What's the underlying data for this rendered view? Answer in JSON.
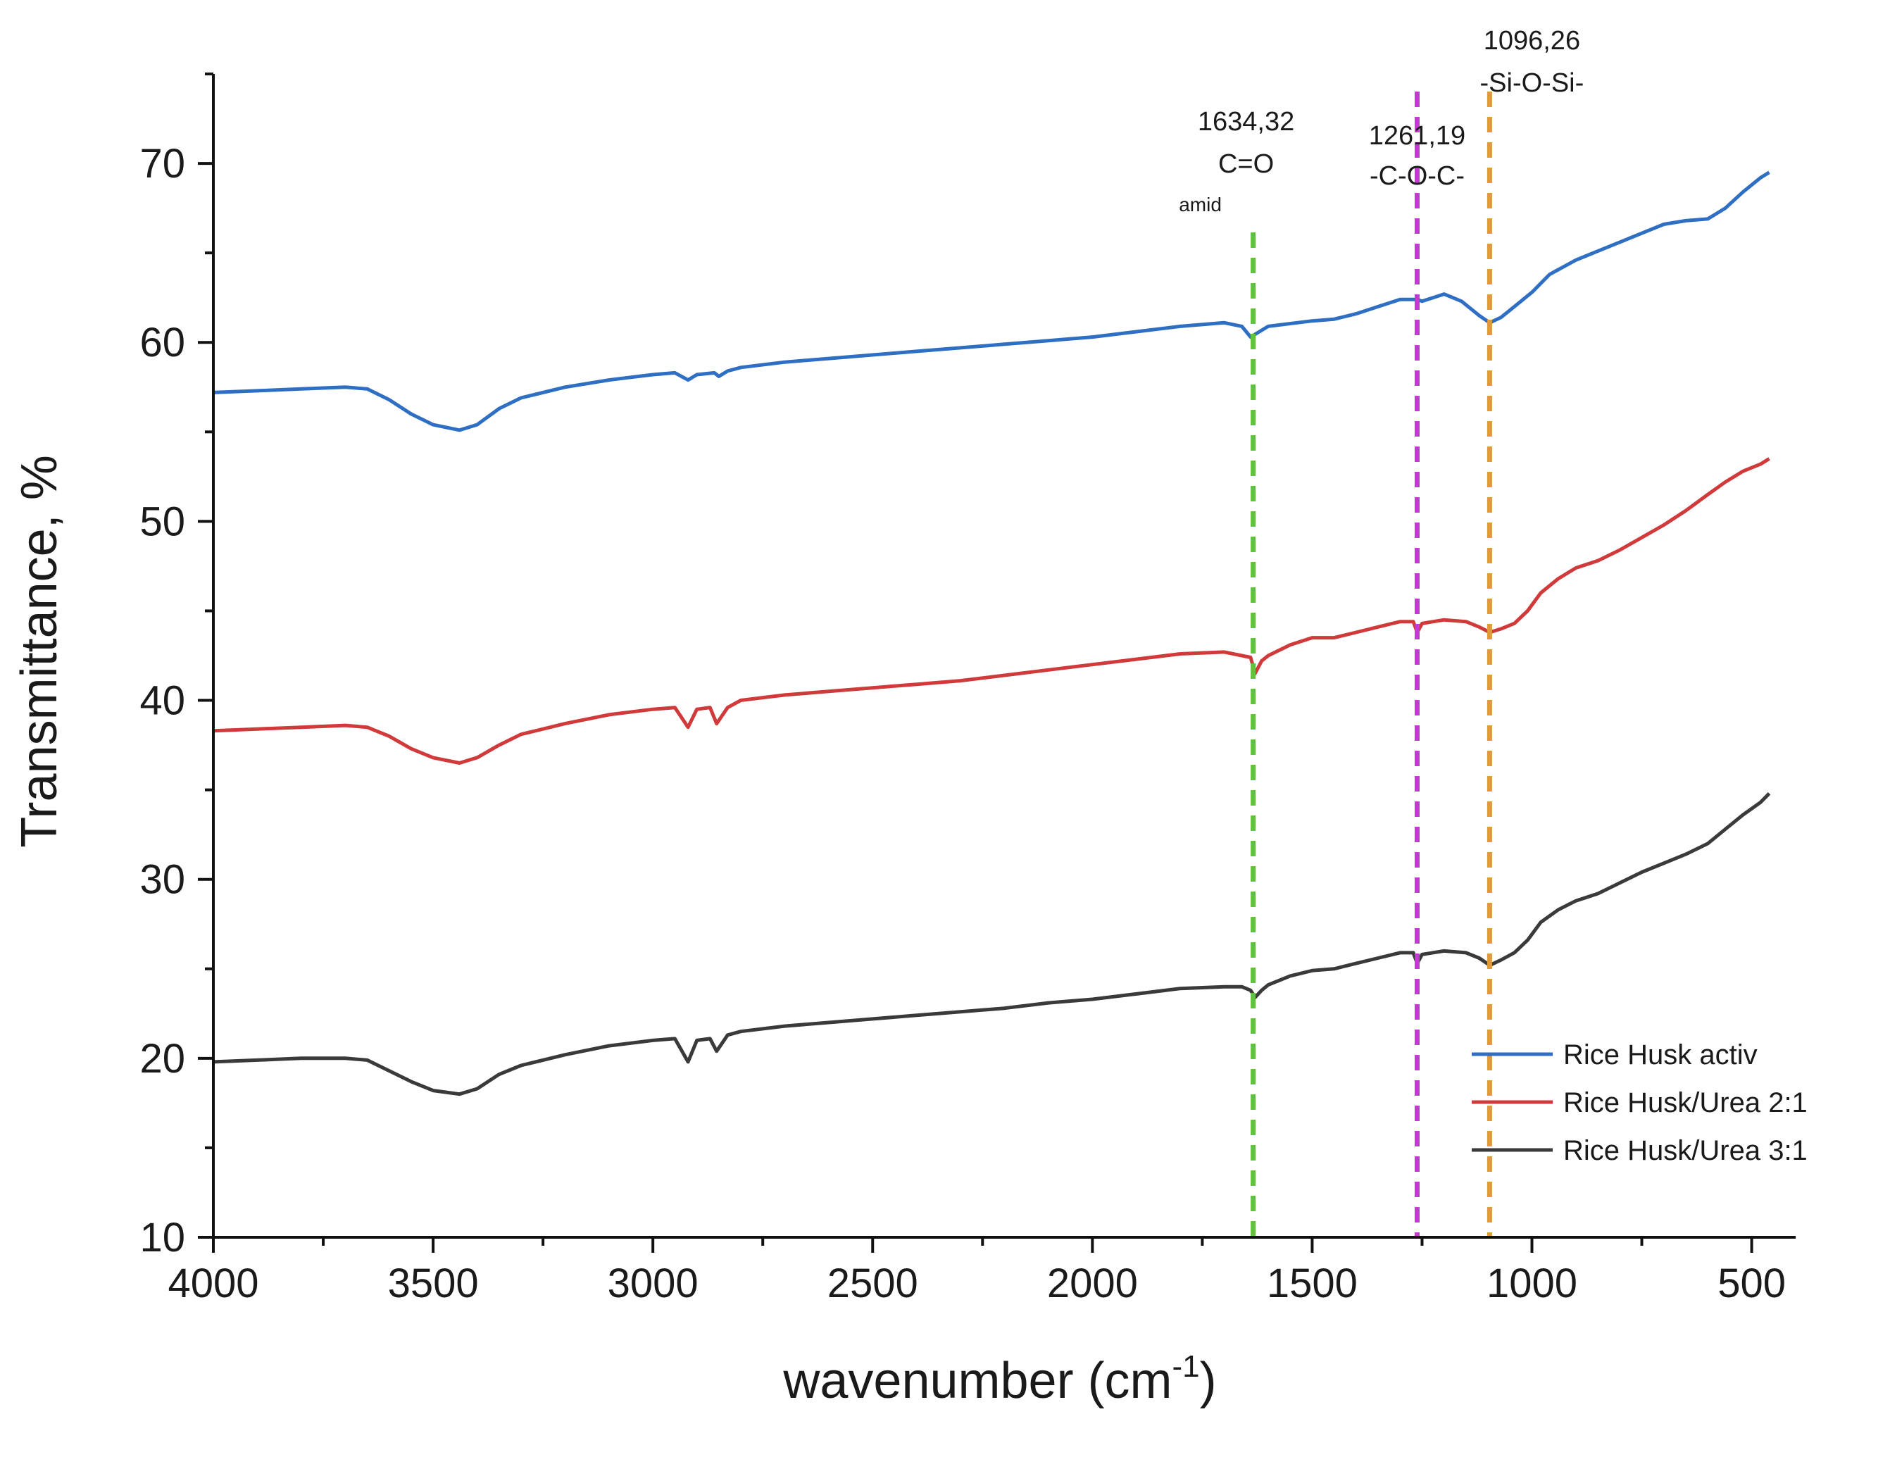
{
  "chart_data": {
    "type": "line",
    "xlabel": "wavenumber (cm",
    "xlabel_sup": "-1",
    "xlabel_close": ")",
    "ylabel": "Transmittance, %",
    "xlim": [
      4000,
      400
    ],
    "ylim": [
      10,
      75
    ],
    "x_axis_reversed": true,
    "grid": false,
    "legend_position": "bottom-right",
    "x_ticks": [
      4000,
      3500,
      3000,
      2500,
      2000,
      1500,
      1000,
      500
    ],
    "y_ticks": [
      10,
      20,
      30,
      40,
      50,
      60,
      70
    ],
    "series": [
      {
        "name": "Rice Husk activ",
        "color": "#2e6fc4",
        "points": [
          [
            4000,
            57.2
          ],
          [
            3900,
            57.3
          ],
          [
            3800,
            57.4
          ],
          [
            3700,
            57.5
          ],
          [
            3650,
            57.4
          ],
          [
            3600,
            56.8
          ],
          [
            3550,
            56
          ],
          [
            3500,
            55.4
          ],
          [
            3440,
            55.1
          ],
          [
            3400,
            55.4
          ],
          [
            3350,
            56.3
          ],
          [
            3300,
            56.9
          ],
          [
            3200,
            57.5
          ],
          [
            3100,
            57.9
          ],
          [
            3000,
            58.2
          ],
          [
            2950,
            58.3
          ],
          [
            2920,
            57.9
          ],
          [
            2900,
            58.2
          ],
          [
            2860,
            58.3
          ],
          [
            2850,
            58.1
          ],
          [
            2830,
            58.4
          ],
          [
            2800,
            58.6
          ],
          [
            2700,
            58.9
          ],
          [
            2600,
            59.1
          ],
          [
            2500,
            59.3
          ],
          [
            2400,
            59.5
          ],
          [
            2300,
            59.7
          ],
          [
            2200,
            59.9
          ],
          [
            2100,
            60.1
          ],
          [
            2000,
            60.3
          ],
          [
            1900,
            60.6
          ],
          [
            1800,
            60.9
          ],
          [
            1700,
            61.1
          ],
          [
            1660,
            60.9
          ],
          [
            1640,
            60.3
          ],
          [
            1620,
            60.6
          ],
          [
            1600,
            60.9
          ],
          [
            1500,
            61.2
          ],
          [
            1450,
            61.3
          ],
          [
            1400,
            61.6
          ],
          [
            1350,
            62
          ],
          [
            1300,
            62.4
          ],
          [
            1261,
            62.4
          ],
          [
            1250,
            62.3
          ],
          [
            1200,
            62.7
          ],
          [
            1160,
            62.3
          ],
          [
            1120,
            61.5
          ],
          [
            1096,
            61.1
          ],
          [
            1070,
            61.4
          ],
          [
            1040,
            62
          ],
          [
            1000,
            62.8
          ],
          [
            960,
            63.8
          ],
          [
            900,
            64.6
          ],
          [
            850,
            65.1
          ],
          [
            800,
            65.6
          ],
          [
            750,
            66.1
          ],
          [
            700,
            66.6
          ],
          [
            650,
            66.8
          ],
          [
            600,
            66.9
          ],
          [
            560,
            67.5
          ],
          [
            520,
            68.4
          ],
          [
            480,
            69.2
          ],
          [
            460,
            69.5
          ]
        ]
      },
      {
        "name": "Rice Husk/Urea 2:1",
        "color": "#d03a3a",
        "points": [
          [
            4000,
            38.3
          ],
          [
            3900,
            38.4
          ],
          [
            3800,
            38.5
          ],
          [
            3700,
            38.6
          ],
          [
            3650,
            38.5
          ],
          [
            3600,
            38
          ],
          [
            3550,
            37.3
          ],
          [
            3500,
            36.8
          ],
          [
            3440,
            36.5
          ],
          [
            3400,
            36.8
          ],
          [
            3350,
            37.5
          ],
          [
            3300,
            38.1
          ],
          [
            3200,
            38.7
          ],
          [
            3100,
            39.2
          ],
          [
            3000,
            39.5
          ],
          [
            2950,
            39.6
          ],
          [
            2920,
            38.5
          ],
          [
            2900,
            39.5
          ],
          [
            2870,
            39.6
          ],
          [
            2855,
            38.7
          ],
          [
            2830,
            39.6
          ],
          [
            2800,
            40
          ],
          [
            2700,
            40.3
          ],
          [
            2600,
            40.5
          ],
          [
            2500,
            40.7
          ],
          [
            2400,
            40.9
          ],
          [
            2300,
            41.1
          ],
          [
            2200,
            41.4
          ],
          [
            2100,
            41.7
          ],
          [
            2000,
            42
          ],
          [
            1900,
            42.3
          ],
          [
            1800,
            42.6
          ],
          [
            1700,
            42.7
          ],
          [
            1660,
            42.5
          ],
          [
            1640,
            42.4
          ],
          [
            1630,
            41.5
          ],
          [
            1615,
            42.2
          ],
          [
            1600,
            42.5
          ],
          [
            1550,
            43.1
          ],
          [
            1500,
            43.5
          ],
          [
            1450,
            43.5
          ],
          [
            1400,
            43.8
          ],
          [
            1350,
            44.1
          ],
          [
            1300,
            44.4
          ],
          [
            1270,
            44.4
          ],
          [
            1261,
            43.8
          ],
          [
            1250,
            44.3
          ],
          [
            1200,
            44.5
          ],
          [
            1150,
            44.4
          ],
          [
            1120,
            44.1
          ],
          [
            1096,
            43.8
          ],
          [
            1070,
            44
          ],
          [
            1040,
            44.3
          ],
          [
            1010,
            45
          ],
          [
            980,
            46
          ],
          [
            940,
            46.8
          ],
          [
            900,
            47.4
          ],
          [
            850,
            47.8
          ],
          [
            800,
            48.4
          ],
          [
            750,
            49.1
          ],
          [
            700,
            49.8
          ],
          [
            650,
            50.6
          ],
          [
            600,
            51.5
          ],
          [
            560,
            52.2
          ],
          [
            520,
            52.8
          ],
          [
            480,
            53.2
          ],
          [
            460,
            53.5
          ]
        ]
      },
      {
        "name": "Rice Husk/Urea 3:1",
        "color": "#3a3a3a",
        "points": [
          [
            4000,
            19.8
          ],
          [
            3900,
            19.9
          ],
          [
            3800,
            20
          ],
          [
            3700,
            20
          ],
          [
            3650,
            19.9
          ],
          [
            3600,
            19.3
          ],
          [
            3550,
            18.7
          ],
          [
            3500,
            18.2
          ],
          [
            3440,
            18
          ],
          [
            3400,
            18.3
          ],
          [
            3350,
            19.1
          ],
          [
            3300,
            19.6
          ],
          [
            3200,
            20.2
          ],
          [
            3100,
            20.7
          ],
          [
            3000,
            21
          ],
          [
            2950,
            21.1
          ],
          [
            2920,
            19.8
          ],
          [
            2900,
            21
          ],
          [
            2870,
            21.1
          ],
          [
            2855,
            20.4
          ],
          [
            2830,
            21.3
          ],
          [
            2800,
            21.5
          ],
          [
            2700,
            21.8
          ],
          [
            2600,
            22
          ],
          [
            2500,
            22.2
          ],
          [
            2400,
            22.4
          ],
          [
            2300,
            22.6
          ],
          [
            2200,
            22.8
          ],
          [
            2100,
            23.1
          ],
          [
            2000,
            23.3
          ],
          [
            1900,
            23.6
          ],
          [
            1800,
            23.9
          ],
          [
            1700,
            24
          ],
          [
            1660,
            24
          ],
          [
            1640,
            23.8
          ],
          [
            1630,
            23.4
          ],
          [
            1615,
            23.8
          ],
          [
            1600,
            24.1
          ],
          [
            1550,
            24.6
          ],
          [
            1500,
            24.9
          ],
          [
            1450,
            25
          ],
          [
            1400,
            25.3
          ],
          [
            1350,
            25.6
          ],
          [
            1300,
            25.9
          ],
          [
            1270,
            25.9
          ],
          [
            1261,
            25.3
          ],
          [
            1250,
            25.8
          ],
          [
            1200,
            26
          ],
          [
            1150,
            25.9
          ],
          [
            1120,
            25.6
          ],
          [
            1096,
            25.2
          ],
          [
            1070,
            25.5
          ],
          [
            1040,
            25.9
          ],
          [
            1010,
            26.6
          ],
          [
            980,
            27.6
          ],
          [
            940,
            28.3
          ],
          [
            900,
            28.8
          ],
          [
            850,
            29.2
          ],
          [
            800,
            29.8
          ],
          [
            750,
            30.4
          ],
          [
            700,
            30.9
          ],
          [
            650,
            31.4
          ],
          [
            600,
            32
          ],
          [
            560,
            32.8
          ],
          [
            520,
            33.6
          ],
          [
            480,
            34.3
          ],
          [
            460,
            34.8
          ]
        ]
      }
    ],
    "annotations": [
      {
        "x": 1634.32,
        "color": "#5fc43c",
        "lines": [
          "1634,32",
          "C=O"
        ],
        "sub": "amid"
      },
      {
        "x": 1261.19,
        "color": "#c23ad0",
        "lines": [
          "1261,19",
          "-C-O-C-"
        ]
      },
      {
        "x": 1096.26,
        "color": "#e09a3a",
        "lines": [
          "1096,26",
          "-Si-O-Si-"
        ]
      }
    ]
  }
}
